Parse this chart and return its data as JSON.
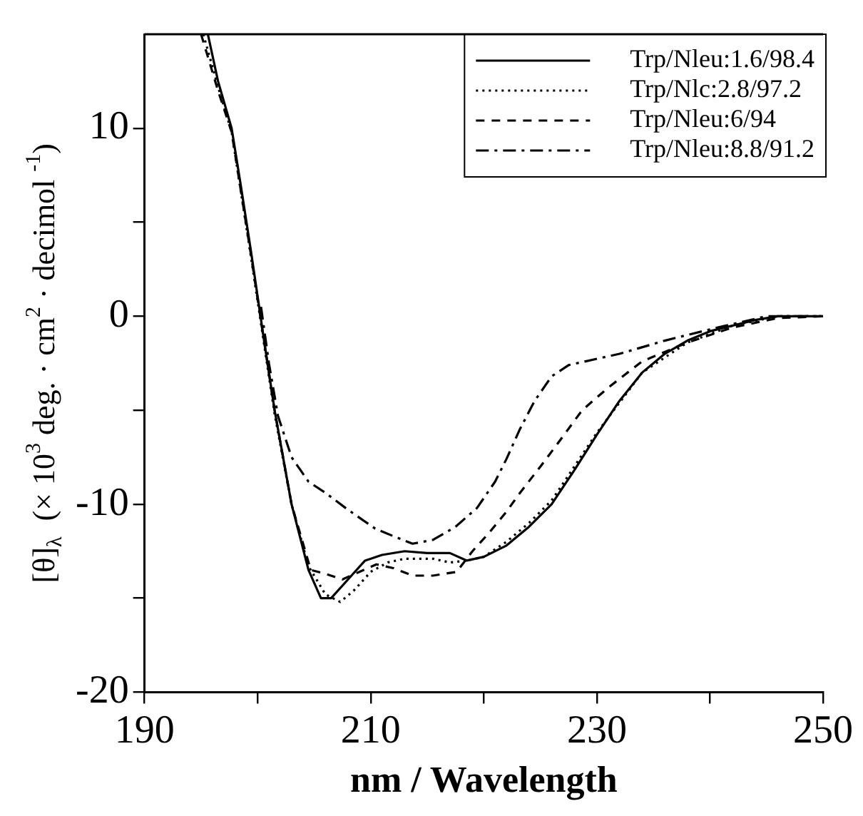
{
  "chart_data": {
    "type": "line",
    "xlabel": "nm / Wavelength",
    "ylabel": "[θ]$_{λ}$  (× 10$^{3}$ deg. · cm$^{2}$ · decimol $^{-1}$)",
    "xlim": [
      190,
      250
    ],
    "ylim": [
      -20,
      15
    ],
    "xticks": [
      190,
      {
        "value": 200,
        "label": null
      },
      210,
      {
        "value": 220,
        "label": null
      },
      230,
      {
        "value": 240,
        "label": null
      },
      250
    ],
    "yticks": [
      -20,
      {
        "value": -15,
        "label": null
      },
      -10,
      {
        "value": -5,
        "label": null
      },
      0,
      {
        "value": 5,
        "label": null
      },
      10
    ],
    "grid": false,
    "legend": "top right",
    "series": [
      {
        "name": "Trp/Nleu:1.6/98.4",
        "color": "#000000",
        "line_style": "solid",
        "x": [
          195.6,
          196.5,
          197.7,
          198.5,
          199.4,
          200.5,
          201.5,
          203,
          204.5,
          205.6,
          206.5,
          208,
          209.5,
          211,
          213,
          215,
          217,
          218.5,
          220,
          222,
          224,
          226,
          228,
          230,
          232,
          234,
          236,
          238,
          240,
          242,
          244,
          246,
          248,
          250
        ],
        "values": [
          15,
          12.5,
          10,
          7,
          3.5,
          -1,
          -5,
          -10,
          -13.5,
          -15,
          -15,
          -14,
          -13,
          -12.7,
          -12.5,
          -12.6,
          -12.6,
          -13,
          -12.8,
          -12.2,
          -11.2,
          -10,
          -8.2,
          -6.3,
          -4.5,
          -3,
          -2,
          -1.3,
          -0.8,
          -0.5,
          -0.2,
          0,
          0,
          0
        ]
      },
      {
        "name": "Trp/Nlc:2.8/97.2",
        "color": "#000000",
        "line_style": "dotted",
        "x": [
          195.2,
          196.5,
          197.7,
          199.4,
          201.5,
          203,
          204.5,
          206,
          207.3,
          208.5,
          210,
          211.5,
          213,
          215.5,
          217,
          218.5,
          220,
          222,
          224,
          226,
          228,
          230,
          234,
          238,
          242,
          246,
          250
        ],
        "values": [
          15,
          12.2,
          9.8,
          3.2,
          -5.2,
          -10,
          -13.3,
          -14.8,
          -15.2,
          -14.6,
          -13.6,
          -13.1,
          -12.9,
          -12.9,
          -13.1,
          -13,
          -12.8,
          -12,
          -11,
          -9.8,
          -8,
          -6.2,
          -3,
          -1.4,
          -0.5,
          0,
          0
        ]
      },
      {
        "name": "Trp/Nleu:6/94",
        "color": "#000000",
        "line_style": "dashed",
        "x": [
          195,
          196.5,
          197.7,
          199.4,
          201.5,
          203,
          204.7,
          206,
          207.5,
          209,
          210.5,
          212,
          213.7,
          215.5,
          217.6,
          219,
          220.5,
          222,
          223.2,
          225,
          226.5,
          228.7,
          231,
          234,
          238,
          242,
          246,
          250
        ],
        "values": [
          15,
          12,
          9.8,
          3.3,
          -5,
          -10,
          -13.5,
          -13.7,
          -14,
          -13.6,
          -13.2,
          -13.4,
          -13.8,
          -13.8,
          -13.6,
          -12.5,
          -11.5,
          -10.4,
          -9.4,
          -8,
          -6.8,
          -5,
          -3.8,
          -2.4,
          -1.4,
          -0.6,
          -0.1,
          0
        ]
      },
      {
        "name": "Trp/Nleu:8.8/91.2",
        "color": "#000000",
        "line_style": "dashdot",
        "x": [
          200.3,
          201,
          201.8,
          203,
          204.5,
          206,
          208,
          210.4,
          212,
          213.7,
          215.5,
          217.5,
          219.4,
          221,
          222,
          223.2,
          224.5,
          226,
          227.5,
          229,
          232,
          236,
          240,
          245,
          250
        ],
        "values": [
          0.5,
          -2.5,
          -5.3,
          -7.5,
          -8.8,
          -9.4,
          -10.3,
          -11.3,
          -11.7,
          -12.1,
          -11.9,
          -11.2,
          -10.2,
          -8.8,
          -7.6,
          -6,
          -4.5,
          -3.2,
          -2.6,
          -2.4,
          -2,
          -1.3,
          -0.7,
          0,
          0
        ]
      }
    ]
  }
}
